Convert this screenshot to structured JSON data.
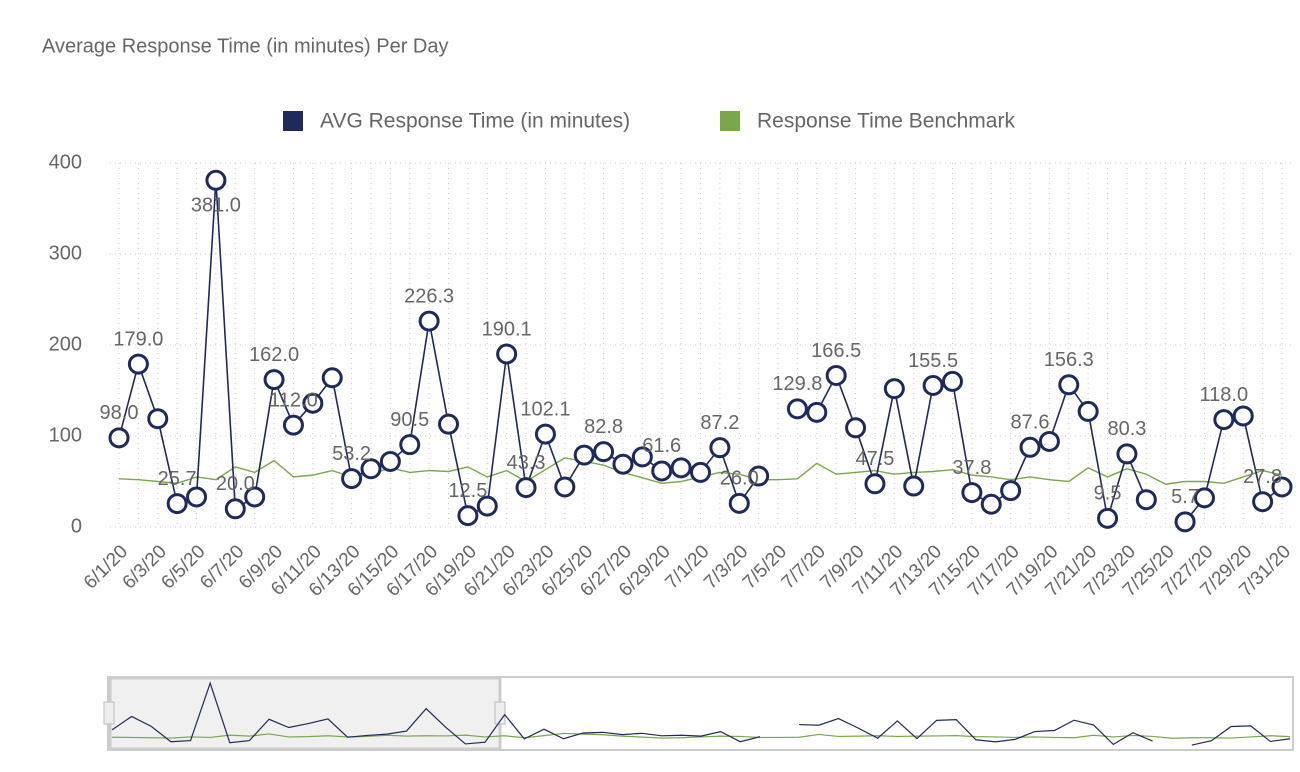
{
  "chart_data": {
    "type": "line",
    "title": "Average Response Time (in minutes) Per Day",
    "categories": [
      "6/1/20",
      null,
      "6/3/20",
      null,
      "6/5/20",
      null,
      "6/7/20",
      null,
      "6/9/20",
      null,
      "6/11/20",
      null,
      "6/13/20",
      null,
      "6/15/20",
      null,
      "6/17/20",
      null,
      "6/19/20",
      null,
      "6/21/20",
      null,
      "6/23/20",
      null,
      "6/25/20",
      null,
      "6/27/20",
      null,
      "6/29/20",
      null,
      "7/1/20",
      null,
      "7/3/20",
      null,
      "7/5/20",
      null,
      "7/7/20",
      null,
      "7/9/20",
      null,
      "7/11/20",
      null,
      "7/13/20",
      null,
      "7/15/20",
      null,
      "7/17/20",
      null,
      "7/19/20",
      null,
      "7/21/20",
      null,
      "7/23/20",
      null,
      "7/25/20",
      null,
      "7/27/20",
      null,
      "7/29/20",
      null,
      "7/31/20"
    ],
    "series": [
      {
        "name": "AVG Response Time (in minutes)",
        "color": "#1f2a5c",
        "values": [
          98,
          179,
          119,
          25.7,
          33,
          381,
          20,
          33,
          162,
          112,
          136,
          164,
          53.2,
          64,
          72,
          90.5,
          226.3,
          113,
          12.5,
          23,
          190.1,
          43.3,
          102.1,
          44,
          79,
          82.8,
          69,
          77,
          61.6,
          65,
          60,
          87.2,
          26,
          56,
          null,
          129.8,
          126,
          166.5,
          109,
          47.5,
          152,
          45,
          155.5,
          160,
          37.8,
          25,
          40,
          87.6,
          94,
          156.3,
          127,
          9.5,
          80.3,
          30,
          null,
          5.7,
          32,
          118,
          122,
          27.8,
          44
        ],
        "value_labels": [
          "98.0",
          "179.0",
          null,
          "25.7",
          null,
          "381.0",
          "20.0",
          null,
          "162.0",
          "112.0",
          null,
          null,
          "53.2",
          null,
          null,
          "90.5",
          "226.3",
          null,
          "12.5",
          null,
          "190.1",
          "43.3",
          "102.1",
          null,
          null,
          "82.8",
          null,
          null,
          "61.6",
          null,
          null,
          "87.2",
          "26.0",
          null,
          null,
          "129.8",
          null,
          "166.5",
          null,
          "47.5",
          null,
          null,
          "155.5",
          null,
          "37.8",
          null,
          null,
          "87.6",
          null,
          "156.3",
          null,
          "9.5",
          "80.3",
          null,
          null,
          "5.7",
          null,
          "118.0",
          null,
          "27.8",
          null
        ]
      },
      {
        "name": "Response Time Benchmark",
        "color": "#7ba74a",
        "values": [
          53,
          52,
          50,
          48,
          55,
          52,
          66,
          60,
          73,
          55,
          57,
          62,
          55,
          58,
          65,
          60,
          62,
          61,
          66,
          55,
          62,
          50,
          63,
          76,
          72,
          68,
          60,
          54,
          48,
          50,
          55,
          60,
          58,
          52,
          52,
          53,
          70,
          58,
          60,
          62,
          58,
          60,
          61,
          63,
          57,
          55,
          52,
          55,
          52,
          50,
          65,
          55,
          64,
          58,
          47,
          50,
          50,
          48,
          55,
          62,
          57
        ]
      }
    ],
    "ylim": [
      0,
      400
    ],
    "yticks": [
      0,
      100,
      200,
      300,
      400
    ],
    "grid": true,
    "legend": "top"
  }
}
